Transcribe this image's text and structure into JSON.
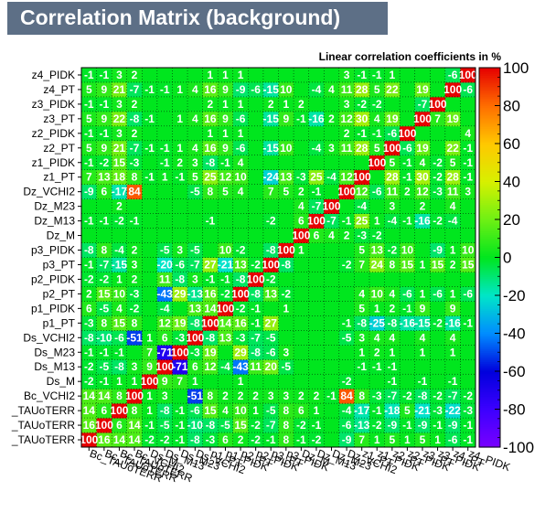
{
  "title": "Correlation Matrix (background)",
  "chart_data": {
    "type": "heatmap",
    "title": "Correlation Matrix (background)",
    "subtitle": "Linear correlation coefficients in %",
    "variables": [
      "Bc_TAUoTERR",
      "Bc_TAUoTERR",
      "Bc_TAUoTERR",
      "Bc_VCHI2",
      "Ds_M",
      "Ds_M13",
      "Ds_M23",
      "Ds_VCHI2",
      "p1_PT",
      "p1_PIDK",
      "p2_PT",
      "p2_PIDK",
      "p3_PT",
      "p3_PIDK",
      "Dz_M",
      "Dz_M13",
      "Dz_M23",
      "Dz_VCHI2",
      "z1_PT",
      "z1_PIDK",
      "z2_PT",
      "z2_PIDK",
      "z3_PT",
      "z3_PIDK",
      "z4_PT",
      "z4_PIDK"
    ],
    "row_labels": [
      "z4_PIDK",
      "z4_PT",
      "z3_PIDK",
      "z3_PT",
      "z2_PIDK",
      "z2_PT",
      "z1_PIDK",
      "z1_PT",
      "Dz_VCHI2",
      "Dz_M23",
      "Dz_M13",
      "Dz_M",
      "p3_PIDK",
      "p3_PT",
      "p2_PIDK",
      "p2_PT",
      "p1_PIDK",
      "p1_PT",
      "Ds_VCHI2",
      "Ds_M23",
      "Ds_M13",
      "Ds_M",
      "Bc_VCHI2",
      "_TAUoTERR",
      "_TAUoTERR",
      "_TAUoTERR"
    ],
    "x_labels": [
      "Bc_TAUoTERR",
      "Bc_TAUoTERR",
      "Bc_TAUoTERR",
      "Bc_VCHI2",
      "Ds_M",
      "Ds_M13",
      "Ds_M23",
      "Ds_VCHI2",
      "p1_PT",
      "p1_PIDK",
      "p2_PT",
      "p2_PIDK",
      "p3_PT",
      "p3_PIDK",
      "Dz_M",
      "Dz_M13",
      "Dz_M23",
      "Dz_VCHI2",
      "z1_PT",
      "z1_PIDK",
      "z2_PT",
      "z2_PIDK",
      "z3_PT",
      "z3_PIDK",
      "z4_PT",
      "z4_PIDK"
    ],
    "zlim": [
      -100,
      100
    ],
    "colorbar_ticks": [
      100,
      80,
      60,
      40,
      20,
      0,
      -20,
      -40,
      -60,
      -80,
      -100
    ],
    "grid": true,
    "values": [
      [
        100,
        16,
        14,
        14,
        -2,
        -2,
        -1,
        -8,
        -3,
        6,
        2,
        -2,
        -1,
        8,
        -1,
        -2,
        0,
        -9,
        7,
        1,
        5,
        1,
        5,
        1,
        -6,
        -1
      ],
      [
        16,
        100,
        6,
        14,
        -1,
        -5,
        -1,
        -10,
        -8,
        -5,
        15,
        -2,
        -7,
        8,
        -2,
        -1,
        0,
        -6,
        -13,
        -2,
        -9,
        -1,
        -9,
        -1,
        -9,
        -1
      ],
      [
        14,
        6,
        100,
        8,
        1,
        -8,
        -1,
        -6,
        15,
        4,
        10,
        1,
        -5,
        8,
        6,
        1,
        0,
        -4,
        -17,
        -1,
        -18,
        5,
        -21,
        -3,
        -22,
        -3
      ],
      [
        14,
        14,
        8,
        100,
        1,
        3,
        0,
        -51,
        8,
        2,
        2,
        2,
        3,
        3,
        2,
        2,
        -1,
        84,
        8,
        -3,
        -7,
        -2,
        -8,
        -2,
        -7,
        -2
      ],
      [
        -2,
        -1,
        1,
        1,
        100,
        9,
        7,
        1,
        0,
        0,
        1,
        0,
        0,
        0,
        0,
        0,
        0,
        -2,
        0,
        0,
        -1,
        0,
        -1,
        0,
        -1,
        0
      ],
      [
        -2,
        -5,
        -8,
        3,
        9,
        100,
        -71,
        6,
        12,
        -4,
        -43,
        11,
        20,
        -5,
        0,
        0,
        0,
        0,
        -1,
        -1,
        -1,
        0,
        0,
        0,
        0,
        0
      ],
      [
        -1,
        -1,
        -1,
        0,
        7,
        -71,
        100,
        -3,
        19,
        0,
        29,
        -8,
        -6,
        3,
        0,
        0,
        0,
        0,
        1,
        2,
        1,
        0,
        1,
        0,
        1,
        0
      ],
      [
        -8,
        -10,
        -6,
        -51,
        1,
        6,
        -3,
        100,
        -8,
        13,
        -3,
        -7,
        -5,
        0,
        0,
        0,
        0,
        -5,
        3,
        4,
        4,
        0,
        4,
        0,
        4,
        0
      ],
      [
        -3,
        8,
        15,
        8,
        0,
        12,
        19,
        -8,
        100,
        14,
        16,
        -1,
        27,
        0,
        0,
        0,
        0,
        -1,
        -8,
        -25,
        -8,
        -16,
        -15,
        -2,
        -16,
        -1
      ],
      [
        6,
        -5,
        4,
        -2,
        0,
        -4,
        0,
        13,
        14,
        100,
        -2,
        -1,
        0,
        1,
        0,
        0,
        0,
        0,
        5,
        1,
        2,
        -1,
        9,
        0,
        9,
        0
      ],
      [
        2,
        15,
        10,
        -3,
        0,
        -43,
        29,
        -13,
        16,
        -2,
        100,
        -8,
        13,
        -2,
        0,
        0,
        0,
        0,
        4,
        10,
        4,
        -6,
        1,
        -6,
        1,
        -6
      ],
      [
        -2,
        -2,
        1,
        2,
        0,
        11,
        -8,
        3,
        -1,
        -1,
        -8,
        100,
        -2,
        0,
        0,
        0,
        0,
        0,
        0,
        0,
        0,
        0,
        0,
        0,
        0,
        0
      ],
      [
        -1,
        -7,
        -15,
        3,
        0,
        -20,
        -6,
        -7,
        27,
        -21,
        13,
        -2,
        100,
        -8,
        0,
        0,
        0,
        -2,
        7,
        24,
        8,
        15,
        1,
        15,
        2,
        15
      ],
      [
        -8,
        8,
        -4,
        2,
        0,
        -5,
        3,
        -5,
        0,
        10,
        -2,
        0,
        -8,
        100,
        1,
        0,
        0,
        0,
        5,
        13,
        -2,
        10,
        0,
        -9,
        1,
        10
      ],
      [
        0,
        0,
        0,
        0,
        0,
        0,
        0,
        0,
        0,
        0,
        0,
        0,
        0,
        0,
        100,
        6,
        4,
        2,
        -3,
        -2,
        0,
        0,
        0,
        0,
        0,
        0
      ],
      [
        -1,
        -1,
        -2,
        -1,
        0,
        0,
        0,
        0,
        -1,
        0,
        0,
        0,
        -2,
        0,
        6,
        100,
        -7,
        -1,
        25,
        1,
        -4,
        -1,
        -16,
        -2,
        -4,
        0
      ],
      [
        0,
        0,
        2,
        0,
        0,
        0,
        0,
        0,
        0,
        0,
        0,
        0,
        0,
        0,
        4,
        -7,
        100,
        0,
        -4,
        0,
        3,
        0,
        2,
        0,
        4,
        0
      ],
      [
        -9,
        6,
        -17,
        84,
        0,
        0,
        0,
        -5,
        8,
        5,
        4,
        0,
        7,
        5,
        2,
        -1,
        0,
        100,
        12,
        -6,
        11,
        2,
        12,
        -3,
        11,
        3
      ],
      [
        7,
        13,
        18,
        8,
        -1,
        1,
        -1,
        5,
        25,
        12,
        10,
        0,
        -24,
        13,
        -3,
        25,
        -4,
        12,
        100,
        0,
        28,
        -1,
        30,
        -2,
        28,
        -1
      ],
      [
        -1,
        -2,
        15,
        -3,
        0,
        -1,
        2,
        3,
        -8,
        -1,
        4,
        0,
        0,
        0,
        0,
        0,
        0,
        0,
        0,
        100,
        5,
        -1,
        4,
        -2,
        5,
        -1
      ],
      [
        5,
        9,
        21,
        -7,
        -1,
        -1,
        1,
        4,
        16,
        9,
        -6,
        0,
        -15,
        10,
        0,
        -4,
        3,
        11,
        28,
        5,
        100,
        -6,
        19,
        0,
        22,
        -1
      ],
      [
        -1,
        -1,
        3,
        2,
        0,
        0,
        0,
        0,
        1,
        1,
        1,
        0,
        0,
        0,
        0,
        0,
        0,
        2,
        -1,
        -1,
        -6,
        100,
        0,
        0,
        0,
        4
      ],
      [
        5,
        9,
        22,
        -8,
        -1,
        0,
        1,
        4,
        16,
        9,
        -6,
        0,
        -15,
        9,
        -1,
        -16,
        2,
        12,
        30,
        4,
        19,
        0,
        100,
        7,
        19,
        0
      ],
      [
        -1,
        -1,
        3,
        2,
        0,
        0,
        0,
        0,
        2,
        1,
        1,
        0,
        2,
        1,
        2,
        0,
        0,
        3,
        -2,
        -2,
        0,
        0,
        -7,
        100,
        0,
        0
      ],
      [
        5,
        9,
        21,
        -7,
        -1,
        -1,
        1,
        4,
        16,
        9,
        -9,
        -6,
        -15,
        10,
        0,
        -4,
        4,
        11,
        28,
        5,
        22,
        0,
        19,
        0,
        100,
        -6
      ],
      [
        -1,
        -1,
        3,
        2,
        0,
        0,
        0,
        0,
        1,
        1,
        1,
        0,
        0,
        0,
        0,
        0,
        0,
        3,
        -1,
        -1,
        1,
        0,
        0,
        0,
        -6,
        100
      ]
    ]
  }
}
